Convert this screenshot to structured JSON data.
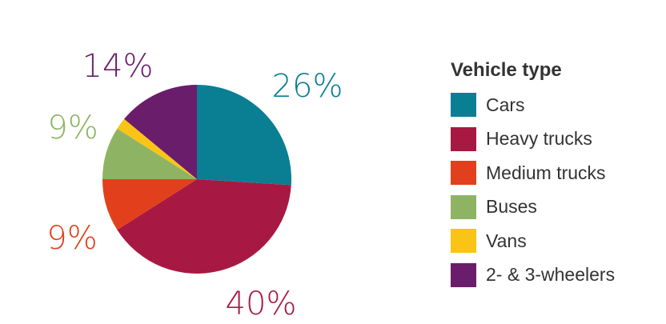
{
  "chart_data": {
    "type": "pie",
    "legend_title": "Vehicle type",
    "legend_position": "right",
    "start_angle_deg": 0,
    "direction": "clockwise",
    "slices": [
      {
        "name": "Cars",
        "value": 26,
        "label": "26%",
        "color": "#0a7f94",
        "label_color": "#0a7f94"
      },
      {
        "name": "Heavy trucks",
        "value": 40,
        "label": "40%",
        "color": "#a71942",
        "label_color": "#a71942"
      },
      {
        "name": "Medium trucks",
        "value": 9,
        "label": "9%",
        "color": "#e2401c",
        "label_color": "#e2401c"
      },
      {
        "name": "Buses",
        "value": 9,
        "label": "9%",
        "color": "#8eb463",
        "label_color": "#8eb463"
      },
      {
        "name": "Vans",
        "value": 2,
        "label": "",
        "color": "#f9c416",
        "label_color": "#f9c416"
      },
      {
        "name": "2- & 3-wheelers",
        "value": 14,
        "label": "14%",
        "color": "#6a1d6b",
        "label_color": "#6a1d6b"
      }
    ]
  }
}
